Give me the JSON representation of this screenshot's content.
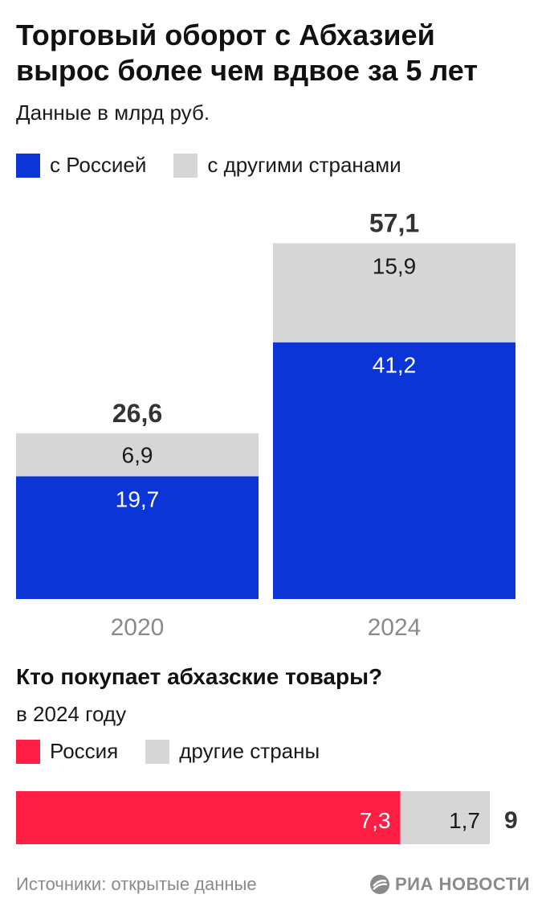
{
  "header": {
    "title": "Торговый оборот с Абхазией вырос более чем вдвое за 5 лет",
    "subtitle": "Данные в млрд руб."
  },
  "chart_data": [
    {
      "type": "bar",
      "stacked": true,
      "categories": [
        "2020",
        "2024"
      ],
      "series": [
        {
          "name": "с Россией",
          "values": [
            19.7,
            41.2
          ],
          "labels": [
            "19,7",
            "41,2"
          ],
          "color": "#0b35d6"
        },
        {
          "name": "с другими странами",
          "values": [
            6.9,
            15.9
          ],
          "labels": [
            "6,9",
            "15,9"
          ],
          "color": "#d6d6d6"
        }
      ],
      "totals": [
        26.6,
        57.1
      ],
      "total_labels": [
        "26,6",
        "57,1"
      ],
      "ylim": [
        0,
        60
      ],
      "legend": "top-left",
      "grid": false
    },
    {
      "type": "bar",
      "orientation": "horizontal",
      "stacked": true,
      "title": "Кто покупает абхазские товары?",
      "subtitle": "в 2024 году",
      "series": [
        {
          "name": "Россия",
          "value": 7.3,
          "label": "7,3",
          "color": "#ff1f44"
        },
        {
          "name": "другие страны",
          "value": 1.7,
          "label": "1,7",
          "color": "#d6d6d6"
        }
      ],
      "total": 9,
      "total_label": "9",
      "xlim": [
        0,
        9
      ],
      "legend": "top-left"
    }
  ],
  "footer": {
    "source": "Источники: открытые данные",
    "logo_text": "РИА НОВОСТИ",
    "logo_icon": "ria-logo-icon"
  },
  "colors": {
    "text_muted": "#8a8a8a",
    "label_dark": "#1a1a1a",
    "label_light": "#ffffff"
  }
}
